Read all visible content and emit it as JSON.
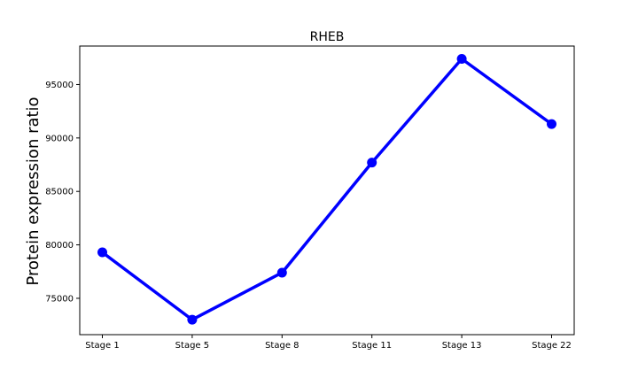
{
  "chart_data": {
    "type": "line",
    "title": "RHEB",
    "xlabel": "",
    "ylabel": "Protein expression ratio",
    "categories": [
      "Stage 1",
      "Stage 5",
      "Stage 8",
      "Stage 11",
      "Stage 13",
      "Stage 22"
    ],
    "series": [
      {
        "values": [
          79300,
          73000,
          77400,
          87700,
          97400,
          91300
        ],
        "color": "#0000ff"
      }
    ],
    "ylim": [
      71600,
      98600
    ],
    "yticks": [
      75000,
      80000,
      85000,
      90000,
      95000
    ],
    "grid": false,
    "legend": "none"
  }
}
